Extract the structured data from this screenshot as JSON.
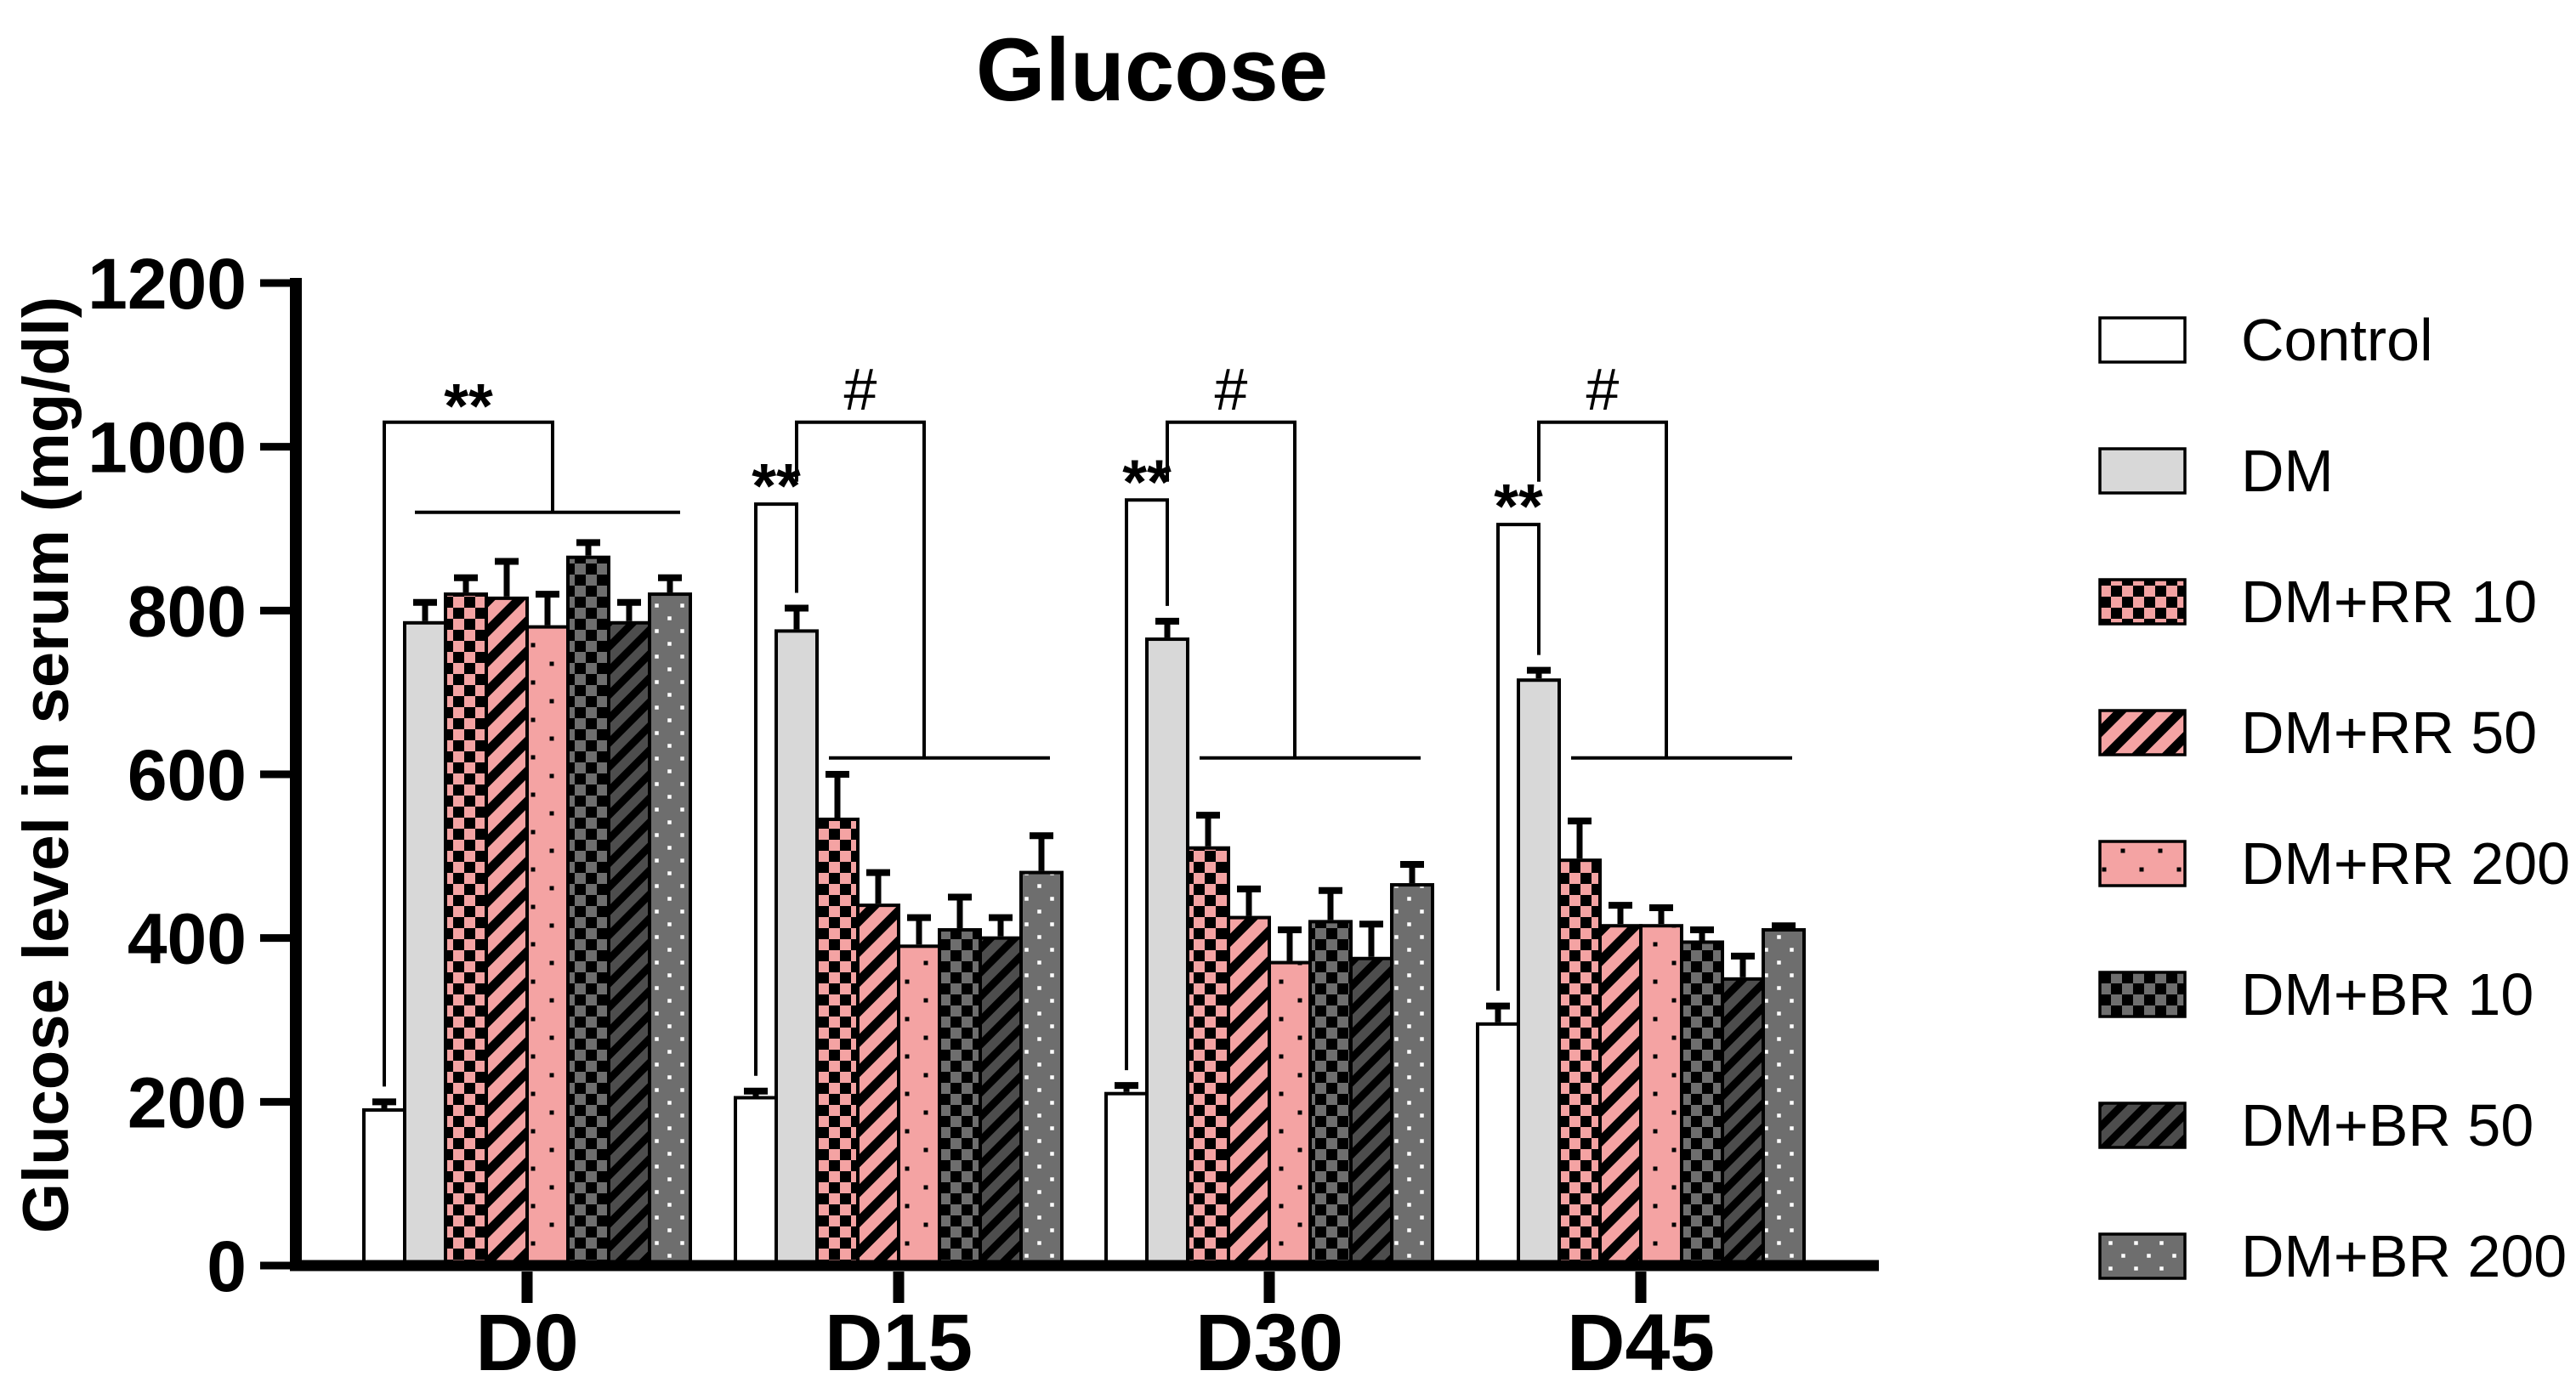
{
  "figure": {
    "title": "Glucose",
    "background": "#FFFFFF",
    "axis_color": "#000000"
  },
  "chart_data": {
    "type": "bar",
    "title": "Glucose",
    "xlabel": "",
    "ylabel": "Glucose level in serum (mg/dl)",
    "ylim": [
      0,
      1200
    ],
    "ytick_step": 200,
    "ytick_labels": [
      "0",
      "200",
      "400",
      "600",
      "800",
      "1000",
      "1200"
    ],
    "grid": false,
    "legend_position": "right",
    "categories": [
      "D0",
      "D15",
      "D30",
      "D45"
    ],
    "series": [
      {
        "name": "Control",
        "fill": "#FFFFFF",
        "pattern": "solid",
        "values": [
          190,
          205,
          210,
          295
        ],
        "errors": [
          10,
          8,
          10,
          22
        ]
      },
      {
        "name": "DM",
        "fill": "#D8D8D8",
        "pattern": "solid",
        "values": [
          785,
          775,
          765,
          715
        ],
        "errors": [
          25,
          28,
          22,
          12
        ]
      },
      {
        "name": "DM+RR 10",
        "fill": "#F4A3A3",
        "pattern": "checker",
        "pattern_color": "#000000",
        "values": [
          820,
          545,
          510,
          495
        ],
        "errors": [
          20,
          55,
          40,
          48
        ]
      },
      {
        "name": "DM+RR 50",
        "fill": "#F4A3A3",
        "pattern": "stripes",
        "pattern_color": "#000000",
        "values": [
          815,
          440,
          425,
          415
        ],
        "errors": [
          45,
          40,
          35,
          25
        ]
      },
      {
        "name": "DM+RR 200",
        "fill": "#F4A3A3",
        "pattern": "dots",
        "pattern_color": "#000000",
        "values": [
          780,
          390,
          370,
          415
        ],
        "errors": [
          40,
          35,
          40,
          22
        ]
      },
      {
        "name": "DM+BR 10",
        "fill": "#6E6E6E",
        "pattern": "checker",
        "pattern_color": "#000000",
        "values": [
          865,
          410,
          420,
          395
        ],
        "errors": [
          18,
          40,
          38,
          15
        ]
      },
      {
        "name": "DM+BR 50",
        "fill": "#4D4D4D",
        "pattern": "stripes",
        "pattern_color": "#000000",
        "values": [
          785,
          400,
          375,
          350
        ],
        "errors": [
          25,
          25,
          42,
          28
        ]
      },
      {
        "name": "DM+BR 200",
        "fill": "#6E6E6E",
        "pattern": "dots",
        "pattern_color": "#FFFFFF",
        "values": [
          820,
          480,
          465,
          410
        ],
        "errors": [
          20,
          45,
          25,
          5
        ]
      }
    ],
    "annotations": [
      {
        "category": "D0",
        "style": "joined",
        "star": "**",
        "star_level": 1030,
        "line_level": 920
      },
      {
        "category": "D15",
        "style": "paired",
        "star": "**",
        "hash": "#",
        "star_level": 930,
        "hash_level": 1030,
        "line_level": 620
      },
      {
        "category": "D30",
        "style": "paired",
        "star": "**",
        "hash": "#",
        "star_level": 935,
        "hash_level": 1030,
        "line_level": 620
      },
      {
        "category": "D45",
        "style": "paired",
        "star": "**",
        "hash": "#",
        "star_level": 905,
        "hash_level": 1030,
        "line_level": 620
      }
    ]
  }
}
